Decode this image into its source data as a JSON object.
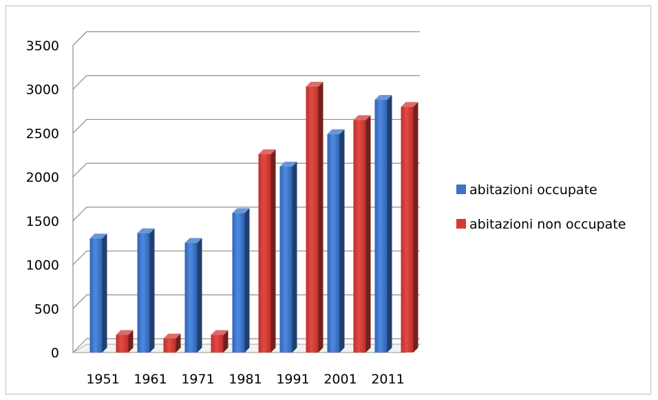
{
  "chart_data": {
    "type": "bar",
    "categories": [
      "1951",
      "1961",
      "1971",
      "1981",
      "1991",
      "2001",
      "2011"
    ],
    "series": [
      {
        "name": "abitazioni occupate",
        "values": [
          1300,
          1360,
          1250,
          1590,
          2120,
          2490,
          2880
        ],
        "color": "#3a73c8"
      },
      {
        "name": "abitazioni non occupate",
        "values": [
          200,
          160,
          200,
          2260,
          3030,
          2650,
          2800
        ],
        "color": "#d23a35"
      }
    ],
    "title": "",
    "xlabel": "",
    "ylabel": "",
    "ylim": [
      0,
      3500
    ],
    "yticks": [
      "0",
      "500",
      "1000",
      "1500",
      "2000",
      "2500",
      "3000",
      "3500"
    ],
    "grid": true,
    "legend_position": "right",
    "style": "3d-column"
  }
}
